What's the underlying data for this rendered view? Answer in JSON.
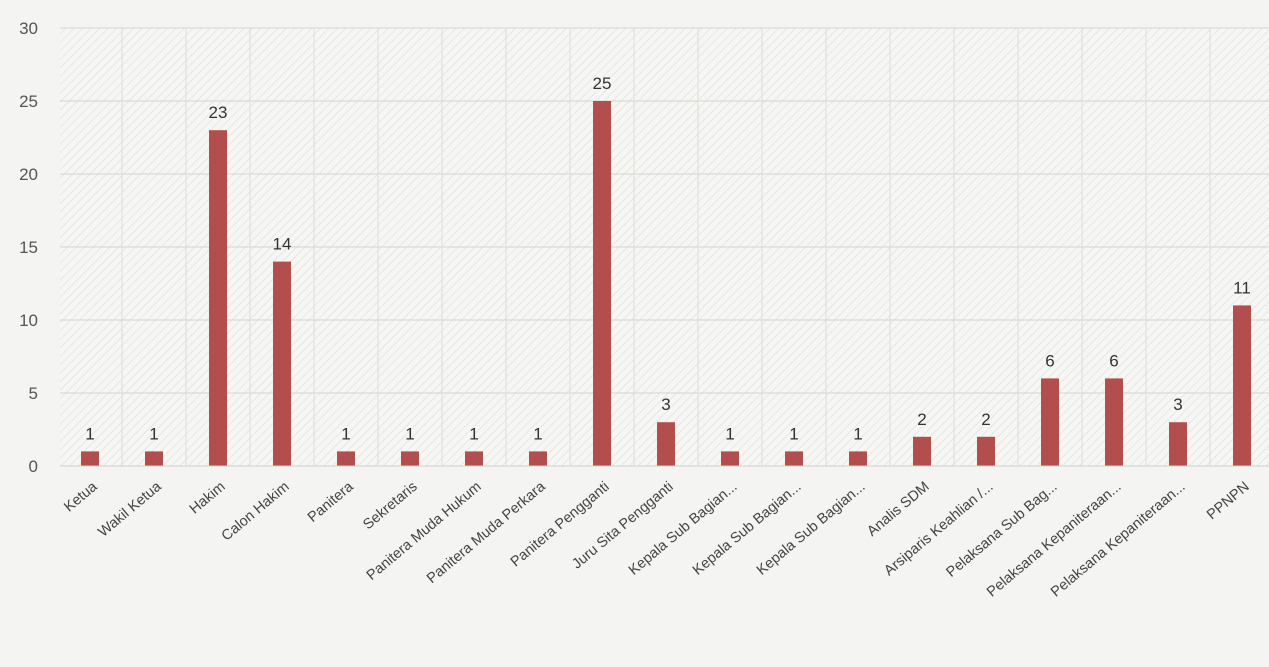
{
  "chart_data": {
    "type": "bar",
    "title": "",
    "xlabel": "",
    "ylabel": "",
    "ylim": [
      0,
      30
    ],
    "yticks": [
      0,
      5,
      10,
      15,
      20,
      25,
      30
    ],
    "grid": true,
    "bar_color": "#b24f4d",
    "categories": [
      "Ketua",
      "Wakil Ketua",
      "Hakim",
      "Calon Hakim",
      "Panitera",
      "Sekretaris",
      "Panitera Muda Hukum",
      "Panitera Muda Perkara",
      "Panitera Pengganti",
      "Juru Sita Pengganti",
      "Kepala Sub Bagian...",
      "Kepala Sub Bagian...",
      "Kepala Sub Bagian...",
      "Analis SDM",
      "Arsiparis Keahlian /...",
      "Pelaksana Sub Bag...",
      "Pelaksana Kepaniteraan...",
      "Pelaksana Kepaniteraan...",
      "PPNPN"
    ],
    "values": [
      1,
      1,
      23,
      14,
      1,
      1,
      1,
      1,
      25,
      3,
      1,
      1,
      1,
      2,
      2,
      6,
      6,
      3,
      11
    ]
  }
}
